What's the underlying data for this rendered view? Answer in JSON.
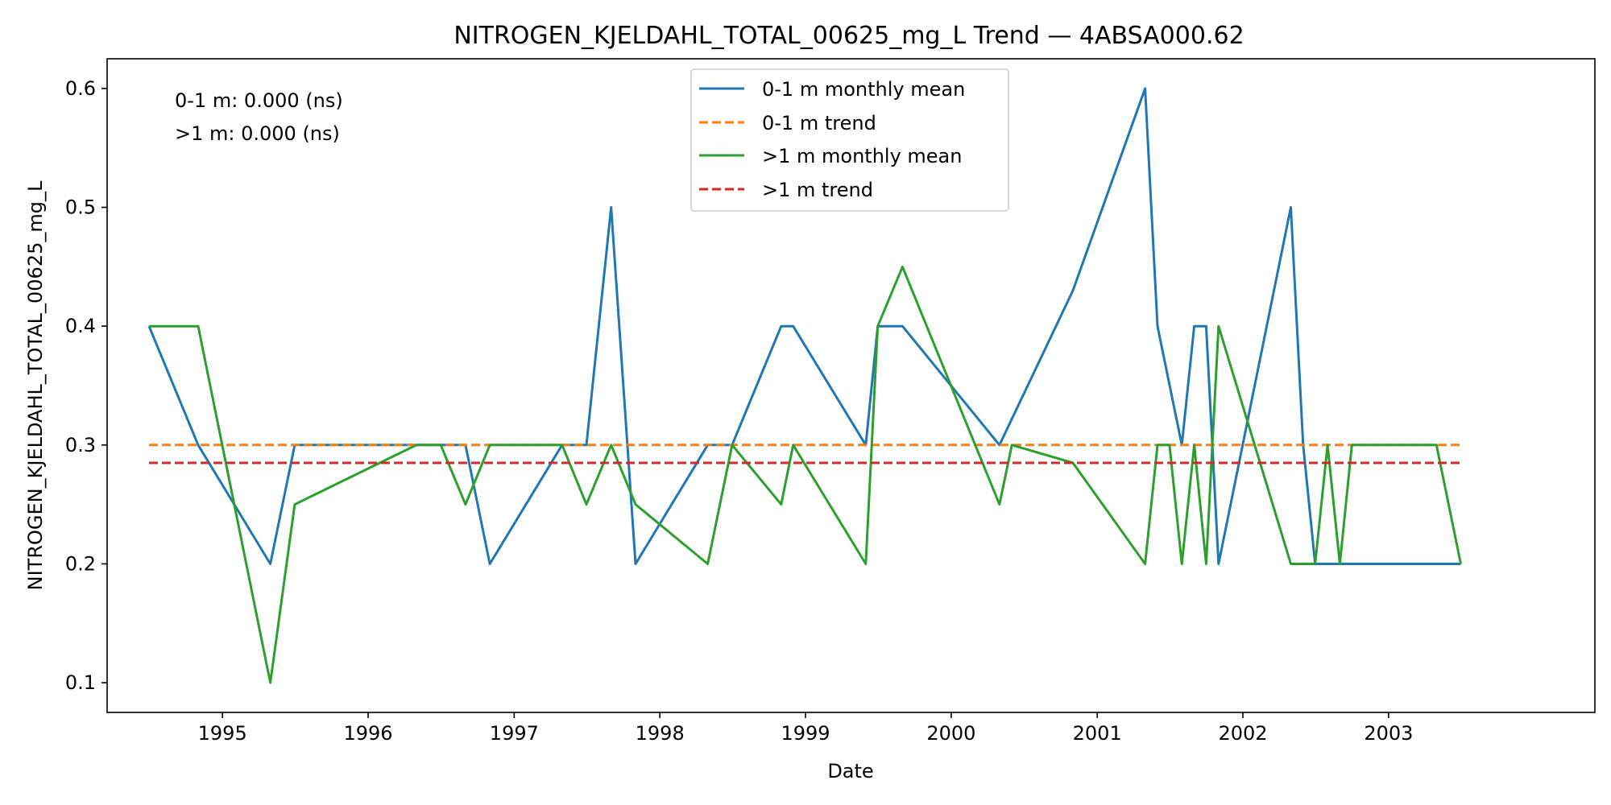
{
  "chart_data": {
    "type": "line",
    "title": "NITROGEN_KJELDAHL_TOTAL_00625_mg_L Trend — 4ABSA000.62",
    "xlabel": "Date",
    "ylabel": "NITROGEN_KJELDAHL_TOTAL_00625_mg_L",
    "xlim": [
      "1994-03-18",
      "2004-06-01"
    ],
    "ylim": [
      0.075,
      0.625
    ],
    "x_ticks": [
      "1995-01-01",
      "1996-01-01",
      "1997-01-01",
      "1998-01-01",
      "1999-01-01",
      "2000-01-01",
      "2001-01-01",
      "2002-01-01",
      "2003-01-01"
    ],
    "x_tick_labels": [
      "1995",
      "1996",
      "1997",
      "1998",
      "1999",
      "2000",
      "2001",
      "2002",
      "2003"
    ],
    "y_ticks": [
      0.1,
      0.2,
      0.3,
      0.4,
      0.5,
      0.6
    ],
    "y_tick_labels": [
      "0.1",
      "0.2",
      "0.3",
      "0.4",
      "0.5",
      "0.6"
    ],
    "grid": false,
    "legend_position": "top-center",
    "annotations": [
      "0-1 m: 0.000 (ns)",
      ">1 m: 0.000 (ns)"
    ],
    "series": [
      {
        "name": "0-1 m monthly mean",
        "color": "#1f77b4",
        "dash": "solid",
        "x": [
          "1994-07-01",
          "1994-11-01",
          "1995-05-01",
          "1995-07-01",
          "1996-05-01",
          "1996-09-01",
          "1996-11-01",
          "1997-05-01",
          "1997-07-01",
          "1997-09-01",
          "1997-11-01",
          "1998-05-01",
          "1998-07-01",
          "1998-11-01",
          "1998-12-01",
          "1999-06-01",
          "1999-07-01",
          "1999-09-01",
          "2000-05-01",
          "2000-11-01",
          "2001-05-01",
          "2001-06-01",
          "2001-08-01",
          "2001-09-01",
          "2001-10-01",
          "2001-11-01",
          "2002-05-01",
          "2002-06-01",
          "2002-07-01",
          "2002-08-01",
          "2003-05-01",
          "2003-07-01"
        ],
        "y": [
          0.4,
          0.3,
          0.2,
          0.3,
          0.3,
          0.3,
          0.2,
          0.3,
          0.3,
          0.5,
          0.2,
          0.3,
          0.3,
          0.4,
          0.4,
          0.3,
          0.4,
          0.4,
          0.3,
          0.43,
          0.6,
          0.4,
          0.3,
          0.4,
          0.4,
          0.2,
          0.5,
          0.3,
          0.2,
          0.2,
          0.2,
          0.2
        ]
      },
      {
        "name": "0-1 m trend",
        "color": "#ff7f0e",
        "dash": "dashed",
        "x": [
          "1994-07-01",
          "2003-07-01"
        ],
        "y": [
          0.3,
          0.3
        ]
      },
      {
        "name": ">1 m monthly mean",
        "color": "#2ca02c",
        "dash": "solid",
        "x": [
          "1994-07-01",
          "1994-11-01",
          "1995-05-01",
          "1995-07-01",
          "1996-05-01",
          "1996-07-01",
          "1996-09-01",
          "1996-11-01",
          "1997-05-01",
          "1997-07-01",
          "1997-09-01",
          "1997-11-01",
          "1998-05-01",
          "1998-07-01",
          "1998-11-01",
          "1998-12-01",
          "1999-06-01",
          "1999-07-01",
          "1999-09-01",
          "2000-05-01",
          "2000-06-01",
          "2000-11-01",
          "2001-05-01",
          "2001-06-01",
          "2001-07-01",
          "2001-08-01",
          "2001-09-01",
          "2001-10-01",
          "2001-11-01",
          "2002-05-01",
          "2002-07-01",
          "2002-08-01",
          "2002-09-01",
          "2002-10-01",
          "2003-05-01",
          "2003-07-01"
        ],
        "y": [
          0.4,
          0.4,
          0.1,
          0.25,
          0.3,
          0.3,
          0.25,
          0.3,
          0.3,
          0.25,
          0.3,
          0.25,
          0.2,
          0.3,
          0.25,
          0.3,
          0.2,
          0.4,
          0.45,
          0.25,
          0.3,
          0.285,
          0.2,
          0.3,
          0.3,
          0.2,
          0.3,
          0.2,
          0.4,
          0.2,
          0.2,
          0.3,
          0.2,
          0.3,
          0.3,
          0.2
        ]
      },
      {
        "name": ">1 m trend",
        "color": "#d62728",
        "dash": "dashed",
        "x": [
          "1994-07-01",
          "2003-07-01"
        ],
        "y": [
          0.285,
          0.285
        ]
      }
    ]
  }
}
